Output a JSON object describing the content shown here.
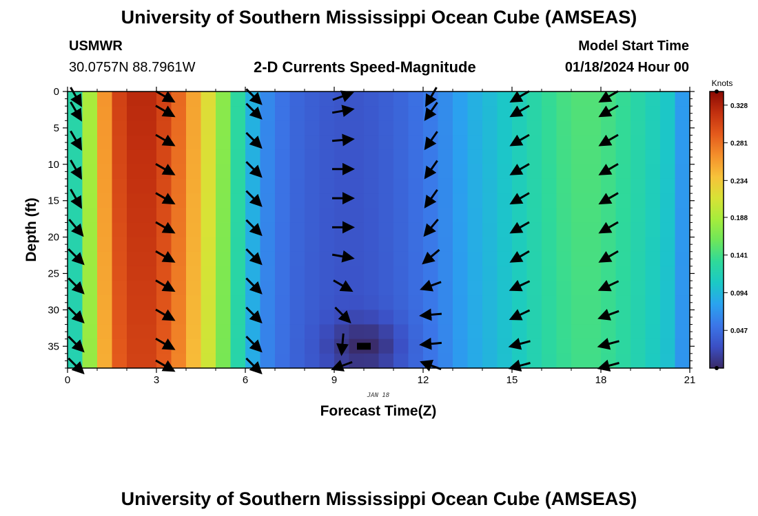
{
  "header": {
    "title_top": "University of Southern Mississippi Ocean Cube (AMSEAS)",
    "title_bottom": "University of Southern Mississippi Ocean Cube (AMSEAS)",
    "station": "USMWR",
    "location": "30.0757N  88.7961W",
    "subtitle": "2-D Currents Speed-Magnitude",
    "model_label": "Model Start Time",
    "model_time": "01/18/2024 Hour 00"
  },
  "colorbar": {
    "unit": "Knots",
    "ticks": [
      "0.328",
      "0.281",
      "0.234",
      "0.188",
      "0.141",
      "0.094",
      "0.047"
    ],
    "min": 0.0,
    "max": 0.345,
    "colors": [
      "#3a2a66",
      "#3b4fc4",
      "#3b76e8",
      "#2aa3ef",
      "#1bc9c5",
      "#2fd99a",
      "#6ee65a",
      "#a6ec3c",
      "#d8e236",
      "#f7c23a",
      "#f48f2b",
      "#e45a1c",
      "#c2300f",
      "#8a0a03"
    ]
  },
  "chart_data": {
    "type": "heatmap",
    "title": "2-D Currents Speed-Magnitude",
    "xlabel": "Forecast Time(Z)",
    "ylabel": "Depth (ft)",
    "date_label": "JAN 18",
    "xlim": [
      0,
      21
    ],
    "ylim": [
      38,
      0
    ],
    "xticks": [
      0,
      3,
      6,
      9,
      12,
      15,
      18,
      21
    ],
    "yticks": [
      0,
      5,
      10,
      15,
      20,
      25,
      30,
      35
    ],
    "speed_profile_hours": [
      0,
      0.5,
      1.5,
      2.5,
      3.5,
      4.5,
      5.5,
      6.5,
      7.5,
      8.5,
      9.5,
      10.5,
      11.5,
      12.5,
      13.5,
      14.5,
      15.5,
      16.5,
      17.5,
      18.5,
      19.5,
      20.5,
      21
    ],
    "speed_profile_knots": [
      0.1,
      0.15,
      0.3,
      0.33,
      0.3,
      0.24,
      0.15,
      0.07,
      0.045,
      0.035,
      0.03,
      0.035,
      0.045,
      0.06,
      0.085,
      0.1,
      0.12,
      0.14,
      0.15,
      0.14,
      0.12,
      0.1,
      0.05
    ],
    "min_speed_location": {
      "hour": 10,
      "depth_ft": 35,
      "speed_knots": 0.0
    },
    "vector_hours": [
      0,
      3,
      6,
      9,
      12,
      15,
      18
    ],
    "vector_depths_ft": [
      0,
      2,
      6,
      10,
      14,
      18,
      22,
      26,
      30,
      34,
      37
    ],
    "vector_angles_deg": [
      [
        -60,
        -30,
        -45,
        20,
        -120,
        -150,
        -150
      ],
      [
        -60,
        -30,
        -45,
        10,
        -125,
        -150,
        -150
      ],
      [
        -60,
        -30,
        -45,
        5,
        -125,
        -150,
        -150
      ],
      [
        -60,
        -30,
        -45,
        0,
        -125,
        -150,
        -150
      ],
      [
        -60,
        -30,
        -45,
        0,
        -125,
        -150,
        -150
      ],
      [
        -50,
        -30,
        -45,
        0,
        -130,
        -150,
        -150
      ],
      [
        -45,
        -30,
        -45,
        -10,
        -140,
        -150,
        -150
      ],
      [
        -45,
        -30,
        -45,
        -30,
        -160,
        -155,
        -155
      ],
      [
        -45,
        -30,
        -45,
        -45,
        -175,
        -155,
        -160
      ],
      [
        -45,
        -30,
        -45,
        -95,
        -175,
        -165,
        -165
      ],
      [
        -45,
        -30,
        -45,
        -160,
        160,
        -165,
        -165
      ]
    ]
  }
}
